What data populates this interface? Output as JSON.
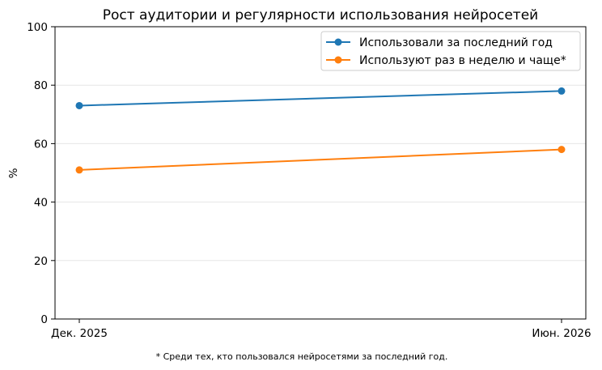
{
  "chart_data": {
    "type": "line",
    "title": "Рост аудитории и регулярности использования нейросетей",
    "xlabel": "",
    "ylabel": "%",
    "categories": [
      "Дек. 2025",
      "Июн. 2026"
    ],
    "ylim": [
      0,
      100
    ],
    "yticks": [
      0,
      20,
      40,
      60,
      80,
      100
    ],
    "grid": true,
    "legend_position": "top-right",
    "series": [
      {
        "name": "Использовали за последний год",
        "values": [
          73,
          78
        ],
        "color": "#1f77b4"
      },
      {
        "name": "Используют раз в неделю и чаще*",
        "values": [
          51,
          58
        ],
        "color": "#ff7f0e"
      }
    ],
    "footnote": "* Среди тех, кто пользовался нейросетями за последний год."
  }
}
